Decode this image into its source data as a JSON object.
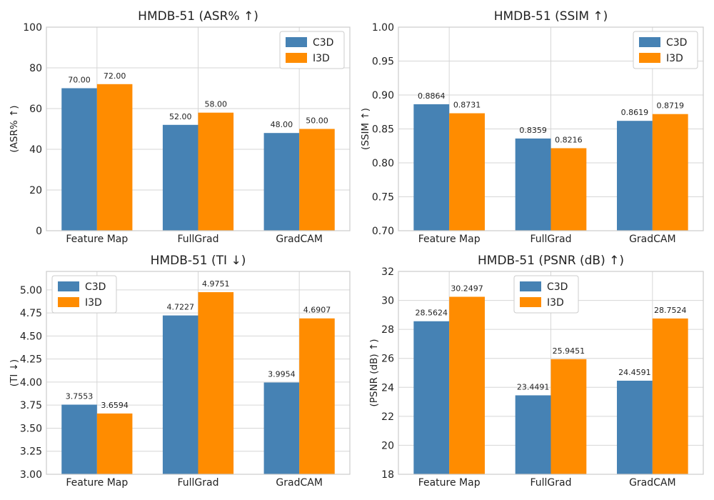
{
  "chart_data": [
    {
      "type": "bar",
      "title": "HMDB-51  (ASR% ↑)",
      "ylabel": "(ASR% ↑)",
      "categories": [
        "Feature Map",
        "FullGrad",
        "GradCAM"
      ],
      "series": [
        {
          "name": "C3D",
          "values": [
            70.0,
            52.0,
            48.0
          ],
          "labels": [
            "70.00",
            "52.00",
            "48.00"
          ]
        },
        {
          "name": "I3D",
          "values": [
            72.0,
            58.0,
            50.0
          ],
          "labels": [
            "72.00",
            "58.00",
            "50.00"
          ]
        }
      ],
      "ylim": [
        0,
        100
      ],
      "yticks": [
        0,
        20,
        40,
        60,
        80,
        100
      ],
      "ytick_labels": [
        "0",
        "20",
        "40",
        "60",
        "80",
        "100"
      ],
      "legend": "top-right",
      "grid": true
    },
    {
      "type": "bar",
      "title": "HMDB-51  (SSIM ↑)",
      "ylabel": "(SSIM ↑)",
      "categories": [
        "Feature Map",
        "FullGrad",
        "GradCAM"
      ],
      "series": [
        {
          "name": "C3D",
          "values": [
            0.8864,
            0.8359,
            0.8619
          ],
          "labels": [
            "0.8864",
            "0.8359",
            "0.8619"
          ]
        },
        {
          "name": "I3D",
          "values": [
            0.8731,
            0.8216,
            0.8719
          ],
          "labels": [
            "0.8731",
            "0.8216",
            "0.8719"
          ]
        }
      ],
      "ylim": [
        0.7,
        1.0
      ],
      "yticks": [
        0.7,
        0.75,
        0.8,
        0.85,
        0.9,
        0.95,
        1.0
      ],
      "ytick_labels": [
        "0.70",
        "0.75",
        "0.80",
        "0.85",
        "0.90",
        "0.95",
        "1.00"
      ],
      "legend": "top-right",
      "grid": true
    },
    {
      "type": "bar",
      "title": "HMDB-51  (TI ↓)",
      "ylabel": "(TI ↓)",
      "categories": [
        "Feature Map",
        "FullGrad",
        "GradCAM"
      ],
      "series": [
        {
          "name": "C3D",
          "values": [
            3.7553,
            4.7227,
            3.9954
          ],
          "labels": [
            "3.7553",
            "4.7227",
            "3.9954"
          ]
        },
        {
          "name": "I3D",
          "values": [
            3.6594,
            4.9751,
            4.6907
          ],
          "labels": [
            "3.6594",
            "4.9751",
            "4.6907"
          ]
        }
      ],
      "ylim": [
        3.0,
        5.2
      ],
      "yticks": [
        3.0,
        3.25,
        3.5,
        3.75,
        4.0,
        4.25,
        4.5,
        4.75,
        5.0
      ],
      "ytick_labels": [
        "3.00",
        "3.25",
        "3.50",
        "3.75",
        "4.00",
        "4.25",
        "4.50",
        "4.75",
        "5.00"
      ],
      "legend": "top-left",
      "grid": true
    },
    {
      "type": "bar",
      "title": "HMDB-51  (PSNR (dB) ↑)",
      "ylabel": "(PSNR (dB) ↑)",
      "categories": [
        "Feature Map",
        "FullGrad",
        "GradCAM"
      ],
      "series": [
        {
          "name": "C3D",
          "values": [
            28.5624,
            23.4491,
            24.4591
          ],
          "labels": [
            "28.5624",
            "23.4491",
            "24.4591"
          ]
        },
        {
          "name": "I3D",
          "values": [
            30.2497,
            25.9451,
            28.7524
          ],
          "labels": [
            "30.2497",
            "25.9451",
            "28.7524"
          ]
        }
      ],
      "ylim": [
        18,
        32
      ],
      "yticks": [
        18,
        20,
        22,
        24,
        26,
        28,
        30,
        32
      ],
      "ytick_labels": [
        "18",
        "20",
        "22",
        "24",
        "26",
        "28",
        "30",
        "32"
      ],
      "legend": "top-center",
      "grid": true
    }
  ],
  "colors": {
    "C3D": "#4682b4",
    "I3D": "#ff8c00"
  }
}
